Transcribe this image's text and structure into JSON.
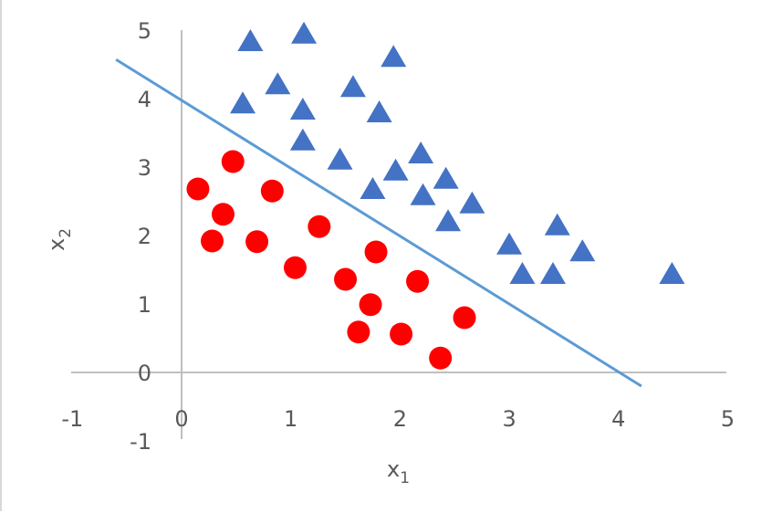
{
  "chart_data": {
    "type": "scatter",
    "xlabel": "x",
    "xlabel_sub": "1",
    "ylabel": "x",
    "ylabel_sub": "2",
    "xlim": [
      -1,
      5
    ],
    "ylim": [
      -1,
      5
    ],
    "x_ticks": [
      "-1",
      "0",
      "1",
      "2",
      "3",
      "4",
      "5"
    ],
    "y_ticks": [
      "-1",
      "0",
      "1",
      "2",
      "3",
      "4",
      "5"
    ],
    "grid": false,
    "legend": "none",
    "series": [
      {
        "marker": "triangle",
        "color": "#4472C4",
        "points": [
          [
            0.63,
            4.84
          ],
          [
            1.12,
            4.95
          ],
          [
            1.94,
            4.61
          ],
          [
            0.88,
            4.21
          ],
          [
            1.57,
            4.17
          ],
          [
            0.56,
            3.93
          ],
          [
            1.11,
            3.84
          ],
          [
            1.81,
            3.8
          ],
          [
            1.11,
            3.39
          ],
          [
            1.45,
            3.11
          ],
          [
            2.19,
            3.2
          ],
          [
            1.96,
            2.95
          ],
          [
            2.42,
            2.83
          ],
          [
            1.75,
            2.68
          ],
          [
            2.21,
            2.59
          ],
          [
            2.66,
            2.47
          ],
          [
            2.44,
            2.21
          ],
          [
            3.0,
            1.87
          ],
          [
            3.44,
            2.15
          ],
          [
            3.67,
            1.77
          ],
          [
            3.12,
            1.44
          ],
          [
            3.4,
            1.44
          ],
          [
            4.49,
            1.44
          ]
        ]
      },
      {
        "marker": "circle",
        "color": "#FF0000",
        "points": [
          [
            0.47,
            3.08
          ],
          [
            0.15,
            2.68
          ],
          [
            0.83,
            2.65
          ],
          [
            0.38,
            2.31
          ],
          [
            1.26,
            2.13
          ],
          [
            0.28,
            1.92
          ],
          [
            0.69,
            1.91
          ],
          [
            1.78,
            1.76
          ],
          [
            1.04,
            1.53
          ],
          [
            1.5,
            1.36
          ],
          [
            2.16,
            1.33
          ],
          [
            1.73,
            0.99
          ],
          [
            2.59,
            0.8
          ],
          [
            1.62,
            0.59
          ],
          [
            2.01,
            0.56
          ],
          [
            2.37,
            0.21
          ]
        ]
      },
      {
        "marker": "line",
        "color": "#5B9BD5",
        "points": [
          [
            -0.6,
            4.57
          ],
          [
            4.21,
            -0.2
          ]
        ]
      }
    ]
  }
}
